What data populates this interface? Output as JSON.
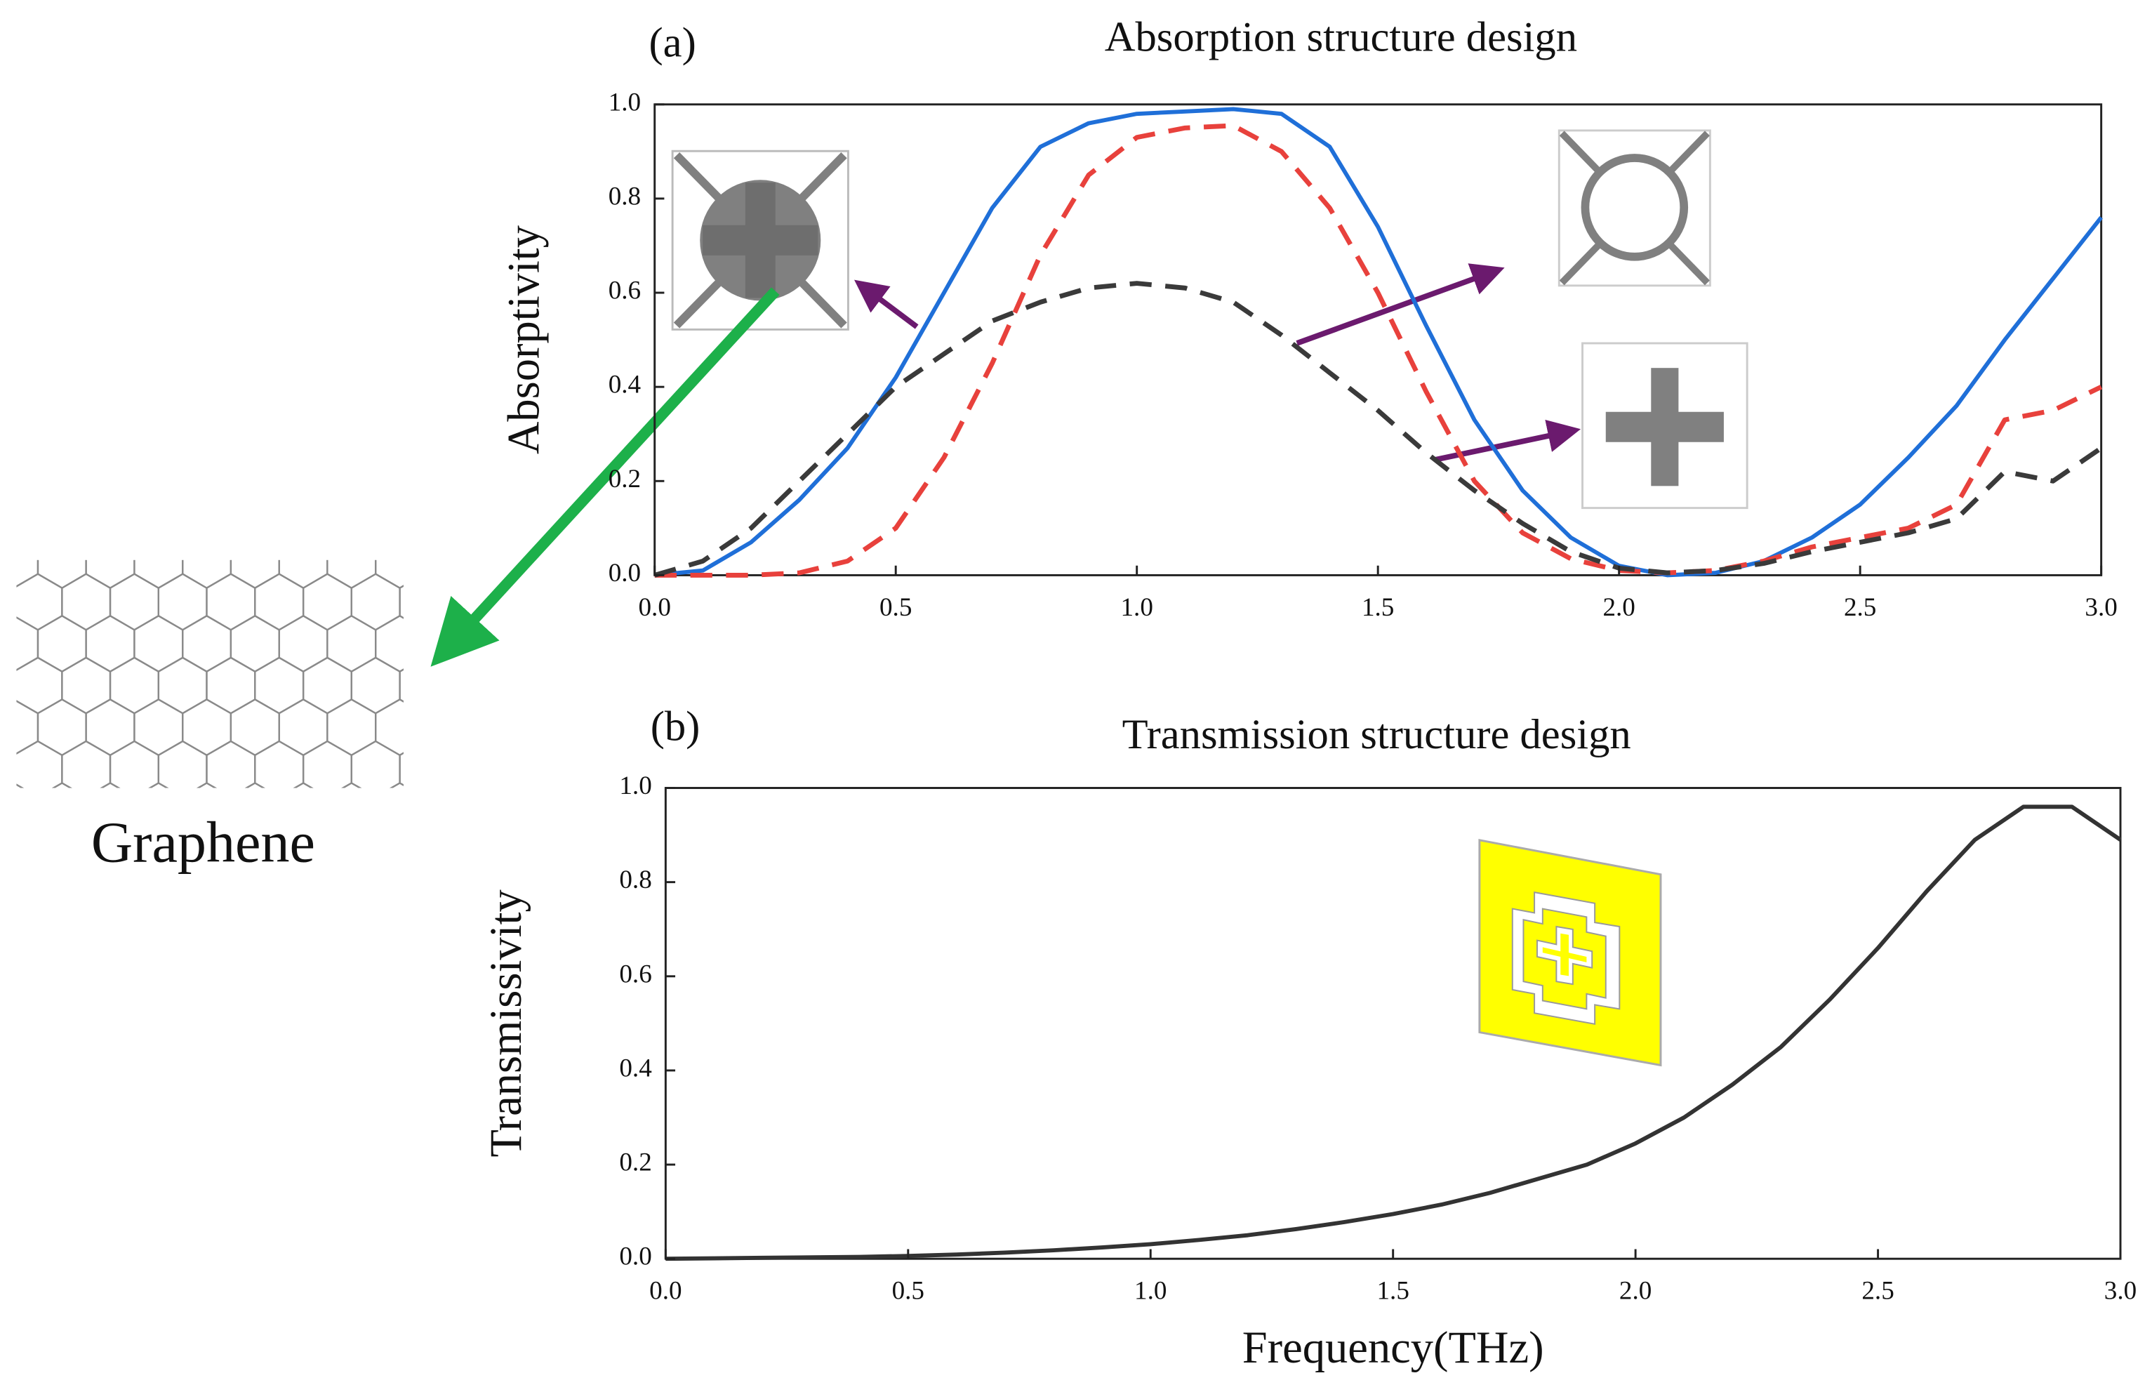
{
  "figure_label": "Graphene",
  "chart_data": [
    {
      "type": "line",
      "panel_label": "(a)",
      "title": "Absorption structure design",
      "y_label": "Absorptivity",
      "x": [
        0,
        0.1,
        0.2,
        0.3,
        0.4,
        0.5,
        0.6,
        0.7,
        0.8,
        0.9,
        1.0,
        1.1,
        1.2,
        1.3,
        1.4,
        1.5,
        1.6,
        1.7,
        1.8,
        1.9,
        2.0,
        2.1,
        2.2,
        2.3,
        2.4,
        2.5,
        2.6,
        2.7,
        2.8,
        2.9,
        3.0
      ],
      "series": [
        {
          "color": "#1f6fd8",
          "style": "solid",
          "values": [
            0,
            0.01,
            0.07,
            0.16,
            0.27,
            0.42,
            0.6,
            0.78,
            0.91,
            0.96,
            0.98,
            0.985,
            0.99,
            0.98,
            0.91,
            0.74,
            0.53,
            0.33,
            0.18,
            0.08,
            0.02,
            0,
            0.005,
            0.03,
            0.08,
            0.15,
            0.25,
            0.36,
            0.5,
            0.63,
            0.76
          ]
        },
        {
          "color": "#e8413c",
          "style": "dashed",
          "values": [
            0,
            0,
            0,
            0.005,
            0.03,
            0.1,
            0.25,
            0.45,
            0.68,
            0.85,
            0.93,
            0.95,
            0.955,
            0.9,
            0.78,
            0.6,
            0.39,
            0.2,
            0.09,
            0.035,
            0.01,
            0.005,
            0.01,
            0.03,
            0.06,
            0.08,
            0.1,
            0.15,
            0.33,
            0.35,
            0.4
          ]
        },
        {
          "color": "#3a3a3a",
          "style": "dashed",
          "values": [
            0,
            0.03,
            0.1,
            0.2,
            0.3,
            0.4,
            0.47,
            0.54,
            0.58,
            0.61,
            0.62,
            0.61,
            0.58,
            0.51,
            0.43,
            0.35,
            0.26,
            0.18,
            0.11,
            0.05,
            0.015,
            0.005,
            0.01,
            0.025,
            0.05,
            0.07,
            0.09,
            0.12,
            0.22,
            0.2,
            0.27
          ]
        }
      ],
      "xlim": [
        0,
        3
      ],
      "ylim": [
        0,
        1
      ],
      "xticks": [
        {
          "value": 0,
          "label": "0.0"
        },
        0.5,
        {
          "value": 1,
          "label": "1.0"
        },
        1.5,
        {
          "value": 2,
          "label": "2.0"
        },
        2.5,
        {
          "value": 3,
          "label": "3.0"
        }
      ],
      "yticks": [
        {
          "value": 0,
          "label": "0.0"
        },
        0.2,
        0.4,
        0.6,
        0.8,
        {
          "value": 1,
          "label": "1.0"
        }
      ]
    },
    {
      "type": "line",
      "panel_label": "(b)",
      "title": "Transmission structure design",
      "y_label": "Transmissivity",
      "x_label": "Frequency(THz)",
      "x": [
        0,
        0.1,
        0.2,
        0.3,
        0.4,
        0.5,
        0.6,
        0.7,
        0.8,
        0.9,
        1.0,
        1.1,
        1.2,
        1.3,
        1.4,
        1.5,
        1.6,
        1.7,
        1.8,
        1.9,
        2.0,
        2.1,
        2.2,
        2.3,
        2.4,
        2.5,
        2.6,
        2.7,
        2.8,
        2.9,
        3.0
      ],
      "series": [
        {
          "color": "#333333",
          "style": "solid",
          "values": [
            0,
            0.001,
            0.002,
            0.003,
            0.004,
            0.006,
            0.009,
            0.013,
            0.018,
            0.024,
            0.031,
            0.04,
            0.05,
            0.063,
            0.078,
            0.095,
            0.115,
            0.14,
            0.17,
            0.2,
            0.245,
            0.3,
            0.37,
            0.45,
            0.55,
            0.66,
            0.78,
            0.89,
            0.96,
            0.96,
            0.89
          ]
        }
      ],
      "xlim": [
        0,
        3
      ],
      "ylim": [
        0,
        1
      ],
      "xticks": [
        {
          "value": 0,
          "label": "0.0"
        },
        0.5,
        {
          "value": 1,
          "label": "1.0"
        },
        1.5,
        {
          "value": 2,
          "label": "2.0"
        },
        2.5,
        {
          "value": 3,
          "label": "3.0"
        }
      ],
      "yticks": [
        {
          "value": 0,
          "label": "0.0"
        },
        0.2,
        0.4,
        0.6,
        0.8,
        {
          "value": 1,
          "label": "1.0"
        }
      ]
    }
  ]
}
